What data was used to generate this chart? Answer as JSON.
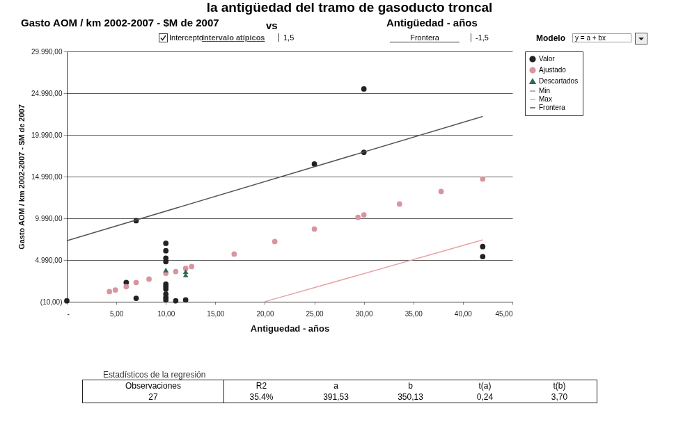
{
  "chart_data": {
    "type": "scatter",
    "title": "la antigüedad del tramo de gasoducto troncal",
    "xlabel": "Antiguedad - años",
    "ylabel": "Gasto AOM / km 2002-2007 - $M de 2007",
    "xlim": [
      0,
      45
    ],
    "xticks": [
      {
        "value": 0,
        "label": "-"
      },
      {
        "value": 5,
        "label": "5,00"
      },
      {
        "value": 10,
        "label": "10,00"
      },
      {
        "value": 15,
        "label": "15,00"
      },
      {
        "value": 20,
        "label": "20,00"
      },
      {
        "value": 25,
        "label": "25,00"
      },
      {
        "value": 30,
        "label": "30,00"
      },
      {
        "value": 35,
        "label": "35,00"
      },
      {
        "value": 40,
        "label": "40,00"
      },
      {
        "value": 45,
        "label": "45,00"
      }
    ],
    "ylim": [
      -10,
      29990
    ],
    "yticks": [
      {
        "value": -10,
        "label": "(10,00)"
      },
      {
        "value": 4990,
        "label": "4.990,00"
      },
      {
        "value": 9990,
        "label": "9.990,00"
      },
      {
        "value": 14990,
        "label": "14.990,00"
      },
      {
        "value": 19990,
        "label": "19.990,00"
      },
      {
        "value": 24990,
        "label": "24.990,00"
      },
      {
        "value": 29990,
        "label": "29.990,00"
      }
    ],
    "grid": "y",
    "legend": "right",
    "series": [
      {
        "name": "Valor",
        "marker": "circle",
        "color": "#222222",
        "x": [
          0,
          6,
          7,
          7,
          10,
          10,
          10,
          10,
          10,
          10,
          10,
          10,
          10,
          10,
          11,
          12,
          25,
          30,
          30,
          42,
          42
        ],
        "values": [
          100,
          2300,
          9700,
          400,
          7000,
          6100,
          5200,
          4800,
          2100,
          1800,
          1500,
          900,
          500,
          200,
          100,
          200,
          16500,
          17900,
          25500,
          6600,
          5400
        ]
      },
      {
        "name": "Ajustado",
        "marker": "circle",
        "color": "#d9959f",
        "x": [
          4.3,
          4.9,
          6,
          7,
          8.3,
          10,
          11,
          12,
          12.6,
          16.9,
          21,
          25,
          29.4,
          30,
          33.6,
          37.8,
          42
        ],
        "values": [
          1200,
          1400,
          1800,
          2300,
          2700,
          3400,
          3600,
          4000,
          4200,
          5700,
          7200,
          8700,
          10100,
          10400,
          11700,
          13200,
          14700
        ]
      },
      {
        "name": "Descartados",
        "marker": "triangle",
        "color": "#2e6b4f",
        "x": [
          10,
          12,
          12
        ],
        "values": [
          3800,
          3600,
          3200
        ]
      },
      {
        "name": "Min",
        "type": "line",
        "color": "#999999"
      },
      {
        "name": "Max",
        "type": "line",
        "color": "#e8a0a8",
        "x": [
          20,
          42
        ],
        "values": [
          0,
          7400
        ]
      },
      {
        "name": "Frontera",
        "type": "line",
        "color": "#555555",
        "x": [
          0,
          42
        ],
        "values": [
          7300,
          22200
        ]
      }
    ],
    "annotations": [
      "Gasto AOM / km 2002-2007 - $M de 2007",
      "vs",
      "Antigüedad - años",
      "Intercepto",
      "Intervalo atípicos",
      "1,5",
      "Frontera",
      "-1,5",
      "Modelo",
      "y = a + bx",
      "Estadísticos de la regresión",
      "Observaciones",
      "R2",
      "a",
      "b",
      "t(a)",
      "t(b)",
      "27",
      "35.4%",
      "391,53",
      "350,13",
      "0,24",
      "3,70"
    ]
  }
}
